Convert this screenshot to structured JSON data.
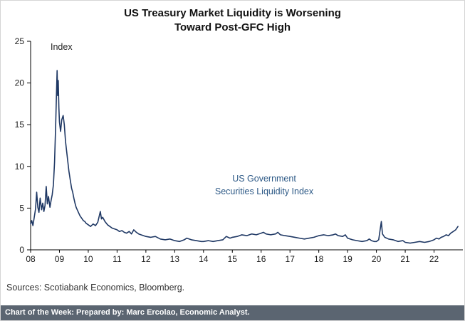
{
  "title": {
    "line1": "US Treasury Market Liquidity is Worsening",
    "line2": "Toward Post-GFC High"
  },
  "axis_label": "Index",
  "annotation": {
    "line1": "US Government",
    "line2": "Securities Liquidity Index"
  },
  "sources": "Sources: Scotiabank Economics, Bloomberg.",
  "footer": {
    "text": "Chart of the Week:  Prepared by: Marc Ercolao, Economic Analyst."
  },
  "colors": {
    "line": "#1f3864",
    "annotation": "#2d5986",
    "footer_bg": "#5b6571",
    "axis": "#000000"
  },
  "chart_data": {
    "type": "line",
    "title": "US Treasury Market Liquidity is Worsening Toward Post-GFC High",
    "ylabel": "Index",
    "series_name": "US Government Securities Liquidity Index",
    "xlim": [
      2008,
      2023
    ],
    "ylim": [
      0,
      25
    ],
    "y_ticks": [
      0,
      5,
      10,
      15,
      20,
      25
    ],
    "x_ticks": [
      2008,
      2009,
      2010,
      2011,
      2012,
      2013,
      2014,
      2015,
      2016,
      2017,
      2018,
      2019,
      2020,
      2021,
      2022
    ],
    "x_tick_labels": [
      "08",
      "09",
      "10",
      "11",
      "12",
      "13",
      "14",
      "15",
      "16",
      "17",
      "18",
      "19",
      "20",
      "21",
      "22"
    ],
    "points": [
      [
        2008.0,
        3.1
      ],
      [
        2008.04,
        3.5
      ],
      [
        2008.08,
        2.9
      ],
      [
        2008.12,
        3.8
      ],
      [
        2008.17,
        4.9
      ],
      [
        2008.21,
        6.9
      ],
      [
        2008.25,
        5.1
      ],
      [
        2008.29,
        4.5
      ],
      [
        2008.33,
        6.2
      ],
      [
        2008.38,
        4.8
      ],
      [
        2008.42,
        5.6
      ],
      [
        2008.46,
        4.6
      ],
      [
        2008.5,
        5.3
      ],
      [
        2008.54,
        7.6
      ],
      [
        2008.58,
        5.5
      ],
      [
        2008.62,
        6.4
      ],
      [
        2008.67,
        5.1
      ],
      [
        2008.71,
        5.9
      ],
      [
        2008.75,
        6.6
      ],
      [
        2008.79,
        7.8
      ],
      [
        2008.83,
        10.5
      ],
      [
        2008.87,
        15.0
      ],
      [
        2008.9,
        19.0
      ],
      [
        2008.92,
        21.5
      ],
      [
        2008.94,
        18.5
      ],
      [
        2008.96,
        20.3
      ],
      [
        2008.98,
        17.0
      ],
      [
        2009.0,
        15.3
      ],
      [
        2009.04,
        14.2
      ],
      [
        2009.08,
        15.6
      ],
      [
        2009.13,
        16.1
      ],
      [
        2009.17,
        15.0
      ],
      [
        2009.21,
        13.0
      ],
      [
        2009.25,
        11.8
      ],
      [
        2009.29,
        10.6
      ],
      [
        2009.33,
        9.4
      ],
      [
        2009.38,
        8.3
      ],
      [
        2009.42,
        7.4
      ],
      [
        2009.46,
        6.9
      ],
      [
        2009.5,
        6.2
      ],
      [
        2009.54,
        5.6
      ],
      [
        2009.58,
        5.1
      ],
      [
        2009.63,
        4.7
      ],
      [
        2009.67,
        4.4
      ],
      [
        2009.71,
        4.1
      ],
      [
        2009.75,
        3.9
      ],
      [
        2009.79,
        3.7
      ],
      [
        2009.83,
        3.5
      ],
      [
        2009.88,
        3.4
      ],
      [
        2009.92,
        3.2
      ],
      [
        2009.96,
        3.1
      ],
      [
        2010.0,
        3.0
      ],
      [
        2010.08,
        2.8
      ],
      [
        2010.17,
        3.1
      ],
      [
        2010.25,
        2.9
      ],
      [
        2010.33,
        3.3
      ],
      [
        2010.42,
        4.6
      ],
      [
        2010.46,
        3.7
      ],
      [
        2010.5,
        3.9
      ],
      [
        2010.58,
        3.4
      ],
      [
        2010.67,
        3.0
      ],
      [
        2010.75,
        2.8
      ],
      [
        2010.83,
        2.6
      ],
      [
        2010.92,
        2.5
      ],
      [
        2011.0,
        2.4
      ],
      [
        2011.08,
        2.2
      ],
      [
        2011.17,
        2.3
      ],
      [
        2011.25,
        2.1
      ],
      [
        2011.33,
        2.0
      ],
      [
        2011.42,
        2.2
      ],
      [
        2011.5,
        1.9
      ],
      [
        2011.58,
        2.4
      ],
      [
        2011.67,
        2.1
      ],
      [
        2011.75,
        1.9
      ],
      [
        2011.83,
        1.8
      ],
      [
        2011.92,
        1.7
      ],
      [
        2012.0,
        1.6
      ],
      [
        2012.17,
        1.5
      ],
      [
        2012.33,
        1.6
      ],
      [
        2012.5,
        1.3
      ],
      [
        2012.67,
        1.2
      ],
      [
        2012.83,
        1.3
      ],
      [
        2013.0,
        1.1
      ],
      [
        2013.17,
        1.0
      ],
      [
        2013.33,
        1.2
      ],
      [
        2013.42,
        1.4
      ],
      [
        2013.58,
        1.2
      ],
      [
        2013.75,
        1.1
      ],
      [
        2013.92,
        1.0
      ],
      [
        2014.0,
        1.0
      ],
      [
        2014.17,
        1.1
      ],
      [
        2014.33,
        1.0
      ],
      [
        2014.5,
        1.1
      ],
      [
        2014.67,
        1.2
      ],
      [
        2014.79,
        1.6
      ],
      [
        2014.92,
        1.4
      ],
      [
        2015.0,
        1.5
      ],
      [
        2015.17,
        1.6
      ],
      [
        2015.33,
        1.8
      ],
      [
        2015.5,
        1.7
      ],
      [
        2015.67,
        1.9
      ],
      [
        2015.83,
        1.8
      ],
      [
        2016.0,
        2.0
      ],
      [
        2016.08,
        2.1
      ],
      [
        2016.17,
        1.9
      ],
      [
        2016.33,
        1.8
      ],
      [
        2016.5,
        1.9
      ],
      [
        2016.58,
        2.1
      ],
      [
        2016.67,
        1.8
      ],
      [
        2016.83,
        1.7
      ],
      [
        2017.0,
        1.6
      ],
      [
        2017.17,
        1.5
      ],
      [
        2017.33,
        1.4
      ],
      [
        2017.5,
        1.3
      ],
      [
        2017.67,
        1.4
      ],
      [
        2017.83,
        1.5
      ],
      [
        2018.0,
        1.7
      ],
      [
        2018.17,
        1.8
      ],
      [
        2018.33,
        1.7
      ],
      [
        2018.5,
        1.8
      ],
      [
        2018.58,
        1.9
      ],
      [
        2018.67,
        1.7
      ],
      [
        2018.83,
        1.6
      ],
      [
        2018.92,
        1.8
      ],
      [
        2019.0,
        1.4
      ],
      [
        2019.17,
        1.2
      ],
      [
        2019.33,
        1.1
      ],
      [
        2019.5,
        1.0
      ],
      [
        2019.67,
        1.1
      ],
      [
        2019.75,
        1.3
      ],
      [
        2019.83,
        1.1
      ],
      [
        2019.92,
        1.0
      ],
      [
        2020.0,
        1.0
      ],
      [
        2020.08,
        1.2
      ],
      [
        2020.17,
        3.4
      ],
      [
        2020.21,
        1.9
      ],
      [
        2020.29,
        1.5
      ],
      [
        2020.42,
        1.3
      ],
      [
        2020.58,
        1.2
      ],
      [
        2020.75,
        1.0
      ],
      [
        2020.92,
        1.1
      ],
      [
        2021.0,
        0.9
      ],
      [
        2021.17,
        0.8
      ],
      [
        2021.33,
        0.9
      ],
      [
        2021.5,
        1.0
      ],
      [
        2021.67,
        0.9
      ],
      [
        2021.83,
        1.0
      ],
      [
        2021.92,
        1.1
      ],
      [
        2022.0,
        1.2
      ],
      [
        2022.08,
        1.4
      ],
      [
        2022.17,
        1.3
      ],
      [
        2022.25,
        1.5
      ],
      [
        2022.33,
        1.6
      ],
      [
        2022.42,
        1.8
      ],
      [
        2022.5,
        1.7
      ],
      [
        2022.58,
        2.0
      ],
      [
        2022.67,
        2.2
      ],
      [
        2022.75,
        2.4
      ],
      [
        2022.83,
        2.8
      ]
    ]
  }
}
